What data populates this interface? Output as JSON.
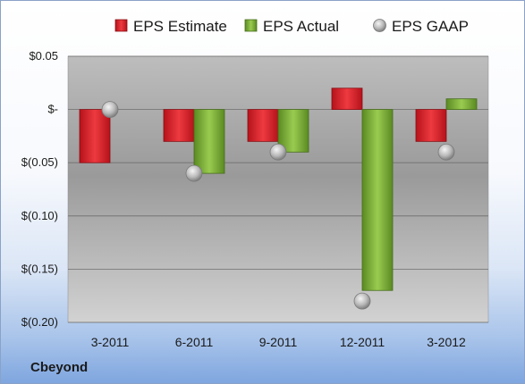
{
  "chart_data": {
    "type": "bar",
    "categories": [
      "3-2011",
      "6-2011",
      "9-2011",
      "12-2011",
      "3-2012"
    ],
    "series": [
      {
        "name": "EPS Estimate",
        "kind": "bar",
        "color": "#e0242c",
        "values": [
          -0.05,
          -0.03,
          -0.03,
          0.02,
          -0.03
        ]
      },
      {
        "name": "EPS Actual",
        "kind": "bar",
        "color": "#7fb03a",
        "values": [
          null,
          -0.06,
          -0.04,
          -0.17,
          0.01
        ]
      },
      {
        "name": "EPS GAAP",
        "kind": "marker",
        "color": "#b8b8b8",
        "values": [
          0.0,
          -0.06,
          -0.04,
          -0.18,
          -0.04
        ]
      }
    ],
    "yticks": [
      0.05,
      0.0,
      -0.05,
      -0.1,
      -0.15,
      -0.2
    ],
    "ytick_labels": [
      "$0.05",
      "$-",
      "$(0.05)",
      "$(0.10)",
      "$(0.15)",
      "$(0.20)"
    ],
    "ylim": [
      -0.2,
      0.05
    ],
    "legend_position": "top",
    "grid": true
  },
  "company": "Cbeyond"
}
